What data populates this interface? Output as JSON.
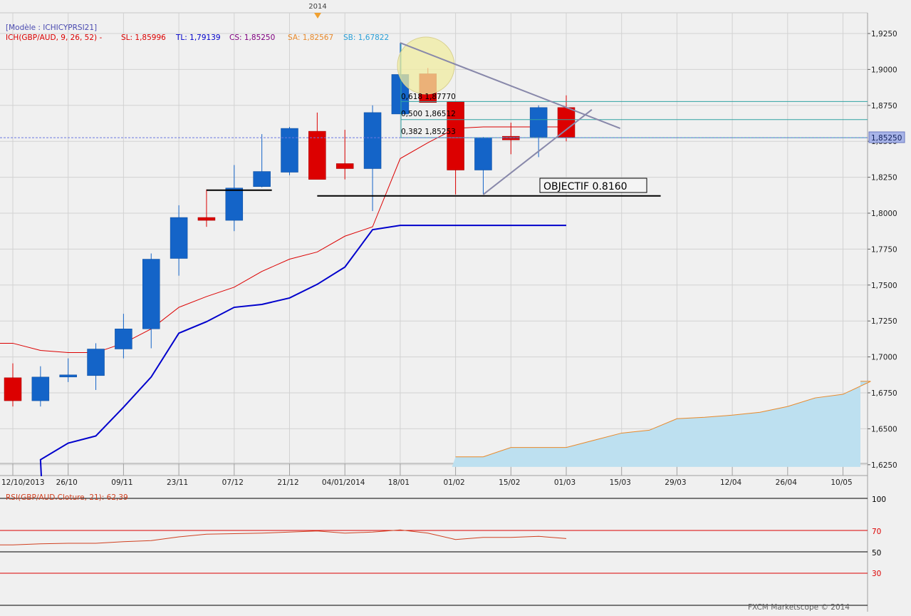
{
  "top_marker": {
    "label": "2014",
    "color": "#f0a030"
  },
  "info": {
    "model": "[Modèle : ICHICYPRSI21]",
    "ich": "ICH(GBP/AUD, 9, 26, 52) -",
    "sl": "SL: 1,85996",
    "tl": "TL: 1,79139",
    "cs": "CS: 1,85250",
    "sa": "SA: 1,82567",
    "sb": "SB: 1,67822"
  },
  "colors": {
    "background": "#f0f0f0",
    "grid": "#d2d2d2",
    "bull": "#1464c8",
    "bear": "#dc0000",
    "tenkan": "#dc0000",
    "kijun": "#0000cc",
    "senkou_a": "#e8892a",
    "senkou_b": "#4ab0e0",
    "cloud_fill": "#bde0f0",
    "fib": "#31a3a3",
    "triangle": "#8888aa",
    "circle": "#f0eca0"
  },
  "price_badge": "1,85250",
  "objective_label": "OBJECTIF 0.8160",
  "fibonacci": [
    {
      "label": "0,618 1,87770",
      "value": 1.8777
    },
    {
      "label": "0,500 1,86512",
      "value": 1.86512
    },
    {
      "label": "0,382 1,85253",
      "value": 1.85253
    }
  ],
  "chart_data": {
    "type": "candlestick",
    "title": "",
    "x_tick_labels": [
      "12/10/2013",
      "26/10",
      "09/11",
      "23/11",
      "07/12",
      "21/12",
      "04/01/2014",
      "18/01",
      "01/02",
      "15/02",
      "01/03",
      "15/03",
      "29/03",
      "12/04",
      "26/04",
      "10/05"
    ],
    "y_tick_labels": [
      "1,9250",
      "1,9000",
      "1,8750",
      "1,8500",
      "1,8250",
      "1,8000",
      "1,7750",
      "1,7500",
      "1,7250",
      "1,7000",
      "1,6750",
      "1,6500",
      "1,6250"
    ],
    "ylim": [
      1.6235,
      1.9333
    ],
    "candles": [
      {
        "date": "12/10/2013",
        "o": 1.6855,
        "h": 1.6955,
        "l": 1.6655,
        "c": 1.6695
      },
      {
        "date": "19/10",
        "o": 1.6695,
        "h": 1.6935,
        "l": 1.6655,
        "c": 1.686
      },
      {
        "date": "26/10",
        "o": 1.686,
        "h": 1.699,
        "l": 1.6825,
        "c": 1.6875
      },
      {
        "date": "02/11",
        "o": 1.687,
        "h": 1.7095,
        "l": 1.677,
        "c": 1.7055
      },
      {
        "date": "09/11",
        "o": 1.7055,
        "h": 1.73,
        "l": 1.699,
        "c": 1.7195
      },
      {
        "date": "16/11",
        "o": 1.7195,
        "h": 1.772,
        "l": 1.706,
        "c": 1.768
      },
      {
        "date": "23/11",
        "o": 1.7685,
        "h": 1.8055,
        "l": 1.7565,
        "c": 1.797
      },
      {
        "date": "30/11",
        "o": 1.797,
        "h": 1.8165,
        "l": 1.7905,
        "c": 1.795
      },
      {
        "date": "07/12",
        "o": 1.795,
        "h": 1.8335,
        "l": 1.7875,
        "c": 1.8175
      },
      {
        "date": "14/12",
        "o": 1.8185,
        "h": 1.855,
        "l": 1.818,
        "c": 1.829
      },
      {
        "date": "21/12",
        "o": 1.8285,
        "h": 1.86,
        "l": 1.8265,
        "c": 1.859
      },
      {
        "date": "28/12",
        "o": 1.857,
        "h": 1.87,
        "l": 1.824,
        "c": 1.8235
      },
      {
        "date": "04/01/2014",
        "o": 1.8345,
        "h": 1.858,
        "l": 1.8235,
        "c": 1.831
      },
      {
        "date": "11/01",
        "o": 1.831,
        "h": 1.875,
        "l": 1.8015,
        "c": 1.87
      },
      {
        "date": "18/01",
        "o": 1.869,
        "h": 1.9185,
        "l": 1.869,
        "c": 1.8965
      },
      {
        "date": "25/01",
        "o": 1.897,
        "h": 1.901,
        "l": 1.8785,
        "c": 1.877
      },
      {
        "date": "01/02",
        "o": 1.8775,
        "h": 1.8775,
        "l": 1.813,
        "c": 1.83
      },
      {
        "date": "08/02",
        "o": 1.83,
        "h": 1.853,
        "l": 1.813,
        "c": 1.8525
      },
      {
        "date": "15/02",
        "o": 1.8535,
        "h": 1.863,
        "l": 1.841,
        "c": 1.851
      },
      {
        "date": "22/02",
        "o": 1.853,
        "h": 1.875,
        "l": 1.839,
        "c": 1.8735
      },
      {
        "date": "01/03",
        "o": 1.8735,
        "h": 1.882,
        "l": 1.85,
        "c": 1.8525
      }
    ],
    "tenkan": [
      1.7095,
      1.7045,
      1.703,
      1.703,
      1.7095,
      1.7195,
      1.7345,
      1.742,
      1.7485,
      1.7595,
      1.768,
      1.773,
      1.784,
      1.7905,
      1.838,
      1.849,
      1.859,
      1.86,
      1.86,
      1.86,
      1.86
    ],
    "kijun": [
      1.617,
      1.6285,
      1.64,
      1.645,
      1.665,
      1.686,
      1.7165,
      1.7245,
      1.7345,
      1.7365,
      1.741,
      1.7505,
      1.7625,
      1.7885,
      1.7915,
      1.7915,
      1.7915,
      1.7915,
      1.7915,
      1.7915,
      1.7915
    ],
    "kijun_start_index": 1,
    "senkou_a": [
      1.6305,
      1.6305,
      1.637,
      1.637,
      1.637,
      1.642,
      1.647,
      1.649,
      1.657,
      1.658,
      1.6595,
      1.6615,
      1.6655,
      1.6715,
      1.674,
      1.683
    ],
    "senkou_a_start_index": 16,
    "senkou_b_value": 1.6235,
    "horizontal_lines": [
      {
        "name": "support-line",
        "value": 1.812,
        "from_index": 11,
        "to_index": 23
      },
      {
        "name": "resistance-line",
        "value": 1.816,
        "from_index": 7,
        "to_index": 9
      }
    ],
    "triangle": {
      "apex_index": 14,
      "apex": 1.9185,
      "upper_end_index": 22,
      "upper_end": 1.859,
      "low_index": 17,
      "low": 1.813,
      "lower_end_index": 21,
      "lower_end": 1.872
    },
    "current_price": 1.8525
  },
  "rsi": {
    "label": "RSI(GBP/AUD.Cloture, 21): 62,39",
    "levels": [
      "100",
      "70",
      "50",
      "30"
    ],
    "values": [
      56.5,
      57.5,
      58.0,
      58.0,
      59.5,
      60.5,
      64.0,
      66.5,
      67.0,
      67.5,
      68.5,
      69.5,
      67.5,
      68.5,
      70.5,
      67.5,
      61.5,
      63.5,
      63.5,
      64.5,
      62.39
    ]
  },
  "footer": "FXCM Marketscope © 2014"
}
